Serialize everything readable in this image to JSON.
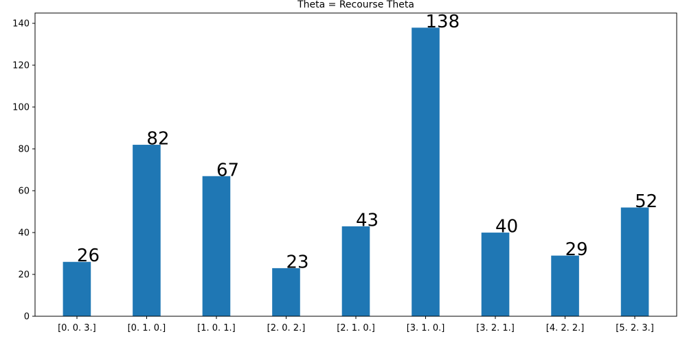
{
  "chart_data": {
    "type": "bar",
    "title": "Theta = Recourse Theta",
    "xlabel": "",
    "ylabel": "",
    "categories": [
      "[0. 0. 3.]",
      "[0. 1. 0.]",
      "[1. 0. 1.]",
      "[2. 0. 2.]",
      "[2. 1. 0.]",
      "[3. 1. 0.]",
      "[3. 2. 1.]",
      "[4. 2. 2.]",
      "[5. 2. 3.]"
    ],
    "values": [
      26,
      82,
      67,
      23,
      43,
      138,
      40,
      29,
      52
    ],
    "data_labels": [
      "26",
      "82",
      "67",
      "23",
      "43",
      "138",
      "40",
      "29",
      "52"
    ],
    "ylim": [
      0,
      145
    ],
    "yticks": [
      0,
      20,
      40,
      60,
      80,
      100,
      120,
      140
    ],
    "bar_color": "#1f77b4",
    "grid": false,
    "legend": "none"
  }
}
